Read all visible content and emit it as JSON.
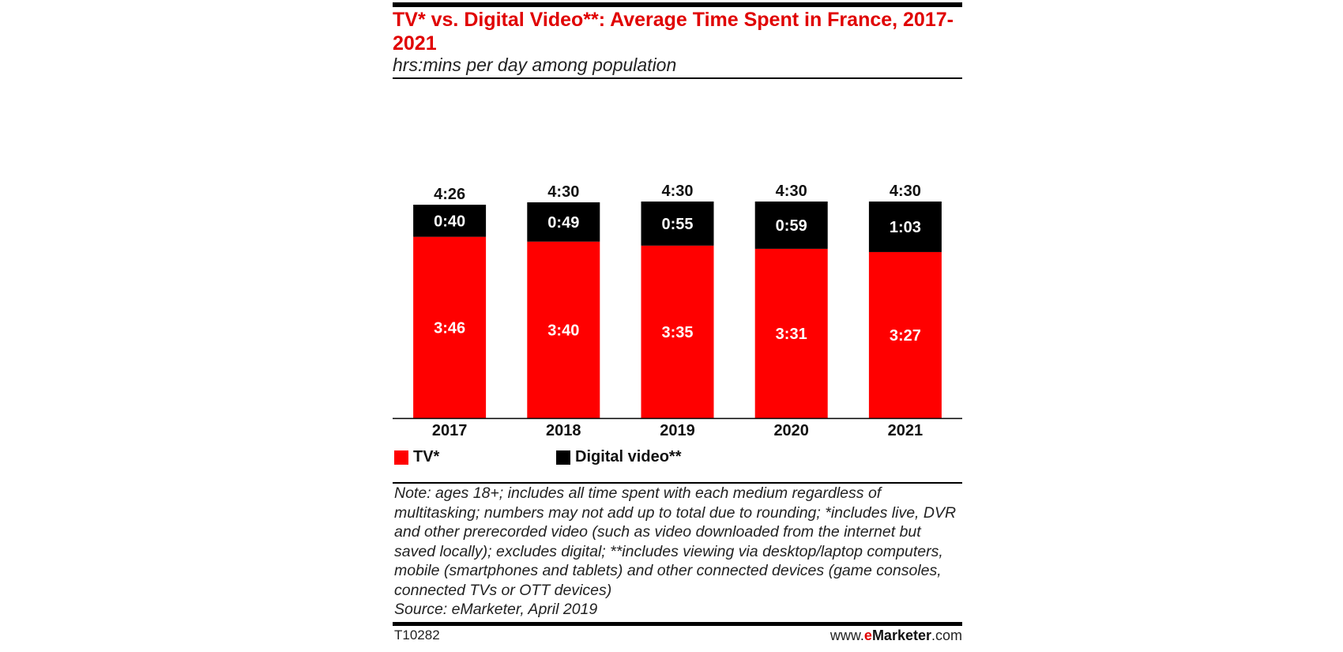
{
  "header": {
    "title": "TV* vs. Digital Video**: Average Time Spent in France, 2017-2021",
    "subtitle": "hrs:mins per day among population"
  },
  "chart_data": {
    "type": "bar",
    "stacked": true,
    "unit": "hrs:mins per day",
    "categories": [
      "2017",
      "2018",
      "2019",
      "2020",
      "2021"
    ],
    "series": [
      {
        "name": "TV*",
        "color": "#ff0000",
        "values": [
          226,
          220,
          215,
          211,
          207
        ],
        "labels": [
          "3:46",
          "3:40",
          "3:35",
          "3:31",
          "3:27"
        ]
      },
      {
        "name": "Digital video**",
        "color": "#000000",
        "values": [
          40,
          49,
          55,
          59,
          63
        ],
        "labels": [
          "0:40",
          "0:49",
          "0:55",
          "0:59",
          "1:03"
        ]
      }
    ],
    "totals": {
      "values": [
        266,
        270,
        270,
        270,
        270
      ],
      "labels": [
        "4:26",
        "4:30",
        "4:30",
        "4:30",
        "4:30"
      ]
    },
    "ylim": [
      0,
      270
    ],
    "grid": false,
    "legend_position": "bottom-left"
  },
  "legend": {
    "tv_label": "TV*",
    "digital_label": "Digital video**",
    "tv_color": "#ff0000",
    "digital_color": "#000000"
  },
  "note": "Note: ages 18+; includes all time spent with each medium regardless of multitasking; numbers may not add up to total due to rounding; *includes live, DVR and other prerecorded video (such as video downloaded from the internet but saved locally); excludes digital; **includes viewing via desktop/laptop computers, mobile (smartphones and tablets) and other connected devices (game consoles, connected TVs or OTT devices)",
  "source": "Source: eMarketer, April 2019",
  "footer": {
    "chart_id": "T10282",
    "site_prefix": "www.",
    "site_e": "e",
    "site_brand": "Marketer",
    "site_suffix": ".com"
  }
}
